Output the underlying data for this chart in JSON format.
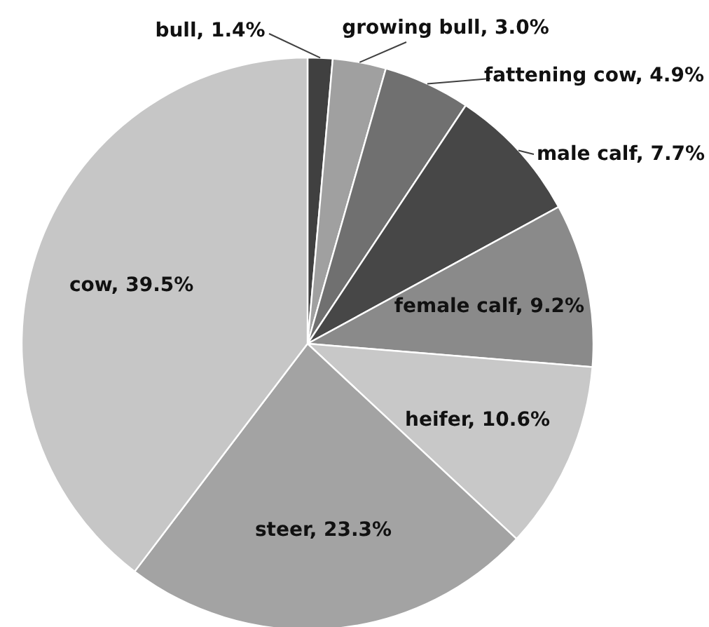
{
  "chart_data": {
    "type": "pie",
    "categories": [
      "bull",
      "growing bull",
      "fattening cow",
      "male calf",
      "female calf",
      "heifer",
      "steer",
      "cow"
    ],
    "values": [
      1.4,
      3.0,
      4.9,
      7.7,
      9.2,
      10.6,
      23.3,
      39.5
    ],
    "value_labels": [
      "1.4%",
      "3.0%",
      "4.9%",
      "7.7%",
      "9.2%",
      "10.6%",
      "23.3%",
      "39.5%"
    ],
    "colors": [
      "#404040",
      "#a0a0a0",
      "#707070",
      "#474747",
      "#8a8a8a",
      "#c8c8c8",
      "#a3a3a3",
      "#c6c6c6"
    ]
  }
}
